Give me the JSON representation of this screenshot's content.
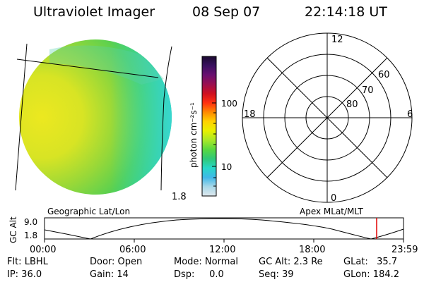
{
  "header": {
    "title": "Ultraviolet Imager",
    "date": "08 Sep 07",
    "time": "22:14:18 UT"
  },
  "colorbar": {
    "unit_label": "photon cm⁻²s⁻¹",
    "ticks": [
      "100",
      "10",
      "1.8"
    ],
    "colors": [
      "#1a0a2e",
      "#3a1060",
      "#6a1070",
      "#9a1050",
      "#d01020",
      "#ff3010",
      "#ff8a00",
      "#ffd200",
      "#e8f000",
      "#a8e828",
      "#58d840",
      "#30c878",
      "#28d8c8",
      "#40b8e8",
      "#a8d8e8",
      "#dfe8ee"
    ]
  },
  "polar_grid": {
    "mlt_labels": [
      "12",
      "18",
      "6",
      "0"
    ],
    "lat_labels": [
      "60",
      "70",
      "80"
    ]
  },
  "timeline": {
    "axis_label": "GC Alt",
    "y_ticks": [
      "9.0",
      "1.8"
    ],
    "left_title": "Geographic Lat/Lon",
    "right_title": "Apex MLat/MLT",
    "x_ticks": [
      "00:00",
      "06:00",
      "12:00",
      "18:00",
      "23:59"
    ],
    "marker_color": "#e00000"
  },
  "info": {
    "flt": "Flt: LBHL",
    "ip": "IP: 36.0",
    "door": "Door: Open",
    "gain": "Gain: 14",
    "mode": "Mode: Normal",
    "dsp": "Dsp:     0.0",
    "gc_alt": "GC Alt: 2.3 Re",
    "seq": "Seq: 39",
    "glat": "GLat:   35.7",
    "glon": "GLon: 184.2"
  }
}
